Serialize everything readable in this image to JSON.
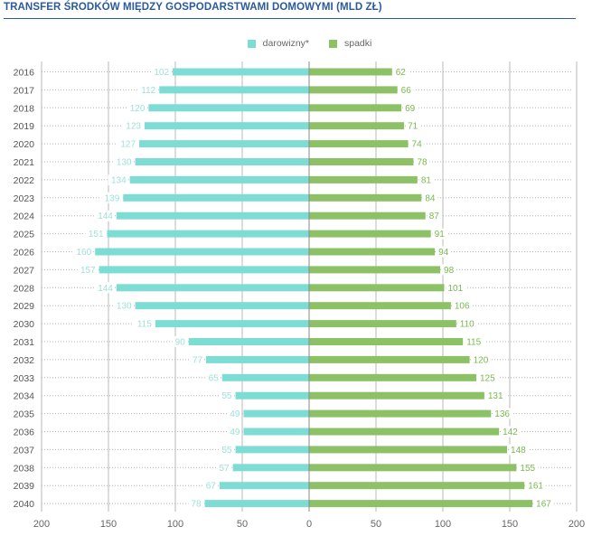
{
  "chart_data": {
    "type": "bar",
    "title": "TRANSFER ŚRODKÓW MIĘDZY GOSPODARSTWAMI DOMOWYMI (MLD ZŁ)",
    "categories": [
      "2016",
      "2017",
      "2018",
      "2019",
      "2020",
      "2021",
      "2022",
      "2023",
      "2024",
      "2025",
      "2026",
      "2027",
      "2028",
      "2029",
      "2030",
      "2031",
      "2032",
      "2033",
      "2034",
      "2035",
      "2036",
      "2037",
      "2038",
      "2039",
      "2040"
    ],
    "series": [
      {
        "name": "darowizny*",
        "color": "#7ddcd3",
        "label_color": "#9fe0da",
        "direction": "left",
        "values": [
          102,
          112,
          120,
          123,
          127,
          130,
          134,
          139,
          144,
          151,
          160,
          157,
          144,
          130,
          115,
          90,
          77,
          65,
          55,
          49,
          49,
          55,
          57,
          67,
          78
        ]
      },
      {
        "name": "spadki",
        "color": "#8cc265",
        "label_color": "#7ab850",
        "direction": "right",
        "values": [
          62,
          66,
          69,
          71,
          74,
          78,
          81,
          84,
          87,
          91,
          94,
          98,
          101,
          106,
          110,
          115,
          120,
          125,
          131,
          136,
          142,
          148,
          155,
          161,
          167
        ]
      }
    ],
    "xlim": [
      -200,
      200
    ],
    "xticks": [
      -200,
      -150,
      -100,
      -50,
      0,
      50,
      100,
      150,
      200
    ],
    "xtick_labels": [
      "200",
      "150",
      "100",
      "50",
      "0",
      "50",
      "100",
      "150",
      "200"
    ],
    "xlabel": "",
    "ylabel": "",
    "legend": "top-center"
  }
}
